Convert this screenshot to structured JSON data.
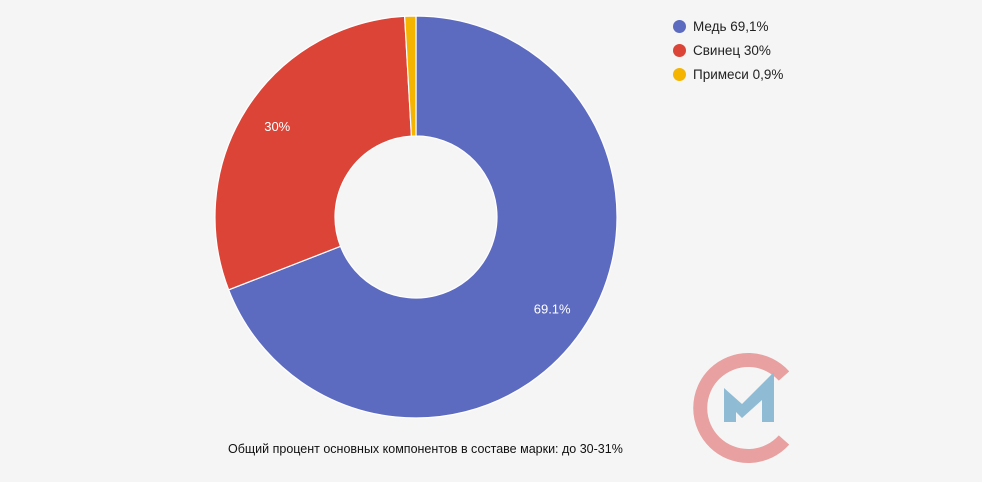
{
  "chart_data": {
    "type": "pie",
    "style": "donut",
    "slices": [
      {
        "legend": "Медь 69,1%",
        "data_label": "69.1%",
        "value": 69.1,
        "color": "#5c6bc0"
      },
      {
        "legend": "Свинец 30%",
        "data_label": "30%",
        "value": 30,
        "color": "#db4437"
      },
      {
        "legend": "Примеси 0,9%",
        "data_label": "",
        "value": 0.9,
        "color": "#f4b400"
      }
    ],
    "legend_position": "top-right",
    "caption": "Общий процент основных компонентов в составе марки: до 30-31%"
  },
  "logo": {
    "colors": {
      "ring": "#e8a0a0",
      "mark": "#8fbcd4"
    }
  }
}
